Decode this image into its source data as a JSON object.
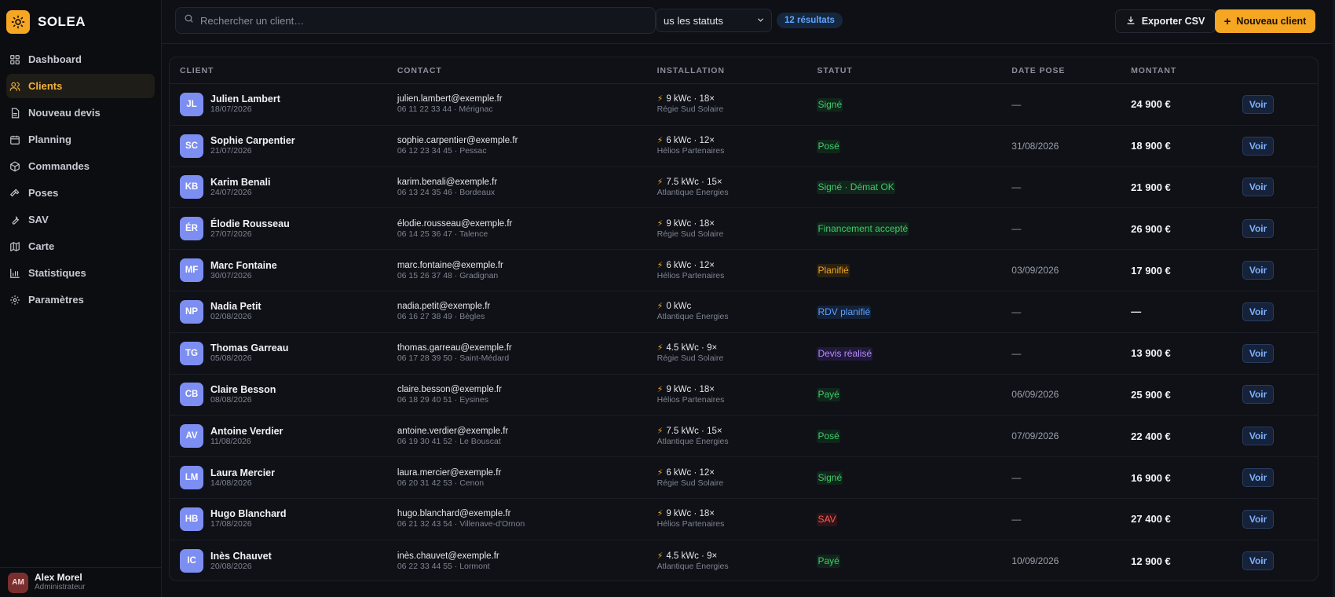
{
  "brand": {
    "name": "SOLEA"
  },
  "nav": [
    {
      "key": "dashboard",
      "label": "Dashboard",
      "icon": "grid-icon"
    },
    {
      "key": "clients",
      "label": "Clients",
      "icon": "users-icon",
      "active": true
    },
    {
      "key": "nouveau-devis",
      "label": "Nouveau devis",
      "icon": "file-icon"
    },
    {
      "key": "planning",
      "label": "Planning",
      "icon": "calendar-icon"
    },
    {
      "key": "commandes",
      "label": "Commandes",
      "icon": "box-icon"
    },
    {
      "key": "poses",
      "label": "Poses",
      "icon": "hammer-icon"
    },
    {
      "key": "sav",
      "label": "SAV",
      "icon": "wrench-icon"
    },
    {
      "key": "carte",
      "label": "Carte",
      "icon": "map-icon"
    },
    {
      "key": "statistiques",
      "label": "Statistiques",
      "icon": "chart-icon"
    },
    {
      "key": "parametres",
      "label": "Paramètres",
      "icon": "gear-icon"
    }
  ],
  "user": {
    "initials": "AM",
    "name": "Alex Morel",
    "role": "Administrateur"
  },
  "toolbar": {
    "search_placeholder": "Rechercher un client…",
    "status_filter": "us les statuts",
    "results": "12 résultats",
    "export_label": "Exporter CSV",
    "new_label": "Nouveau client"
  },
  "columns": {
    "client": "CLIENT",
    "contact": "CONTACT",
    "installation": "INSTALLATION",
    "statut": "STATUT",
    "date_pose": "DATE POSE",
    "montant": "MONTANT"
  },
  "action_label": "Voir",
  "colors": {
    "accent": "#f5a623",
    "avatar": "#7d8ef2"
  },
  "rows": [
    {
      "initials": "JL",
      "name": "Julien Lambert",
      "date": "18/07/2026",
      "email": "julien.lambert@exemple.fr",
      "phone": "06 11 22 33 44 · Mérignac",
      "install": "9 kWc · 18×",
      "installer": "Régie Sud Solaire",
      "status": "Signé",
      "status_color": "green",
      "pose": "—",
      "amount": "24 900 €"
    },
    {
      "initials": "SC",
      "name": "Sophie Carpentier",
      "date": "21/07/2026",
      "email": "sophie.carpentier@exemple.fr",
      "phone": "06 12 23 34 45 · Pessac",
      "install": "6 kWc · 12×",
      "installer": "Hélios Partenaires",
      "status": "Posé",
      "status_color": "green",
      "pose": "31/08/2026",
      "amount": "18 900 €"
    },
    {
      "initials": "KB",
      "name": "Karim Benali",
      "date": "24/07/2026",
      "email": "karim.benali@exemple.fr",
      "phone": "06 13 24 35 46 · Bordeaux",
      "install": "7.5 kWc · 15×",
      "installer": "Atlantique Énergies",
      "status": "Signé · Démat OK",
      "status_color": "green",
      "pose": "—",
      "amount": "21 900 €"
    },
    {
      "initials": "ÉR",
      "name": "Élodie Rousseau",
      "date": "27/07/2026",
      "email": "élodie.rousseau@exemple.fr",
      "phone": "06 14 25 36 47 · Talence",
      "install": "9 kWc · 18×",
      "installer": "Régie Sud Solaire",
      "status": "Financement accepté",
      "status_color": "green",
      "pose": "—",
      "amount": "26 900 €"
    },
    {
      "initials": "MF",
      "name": "Marc Fontaine",
      "date": "30/07/2026",
      "email": "marc.fontaine@exemple.fr",
      "phone": "06 15 26 37 48 · Gradignan",
      "install": "6 kWc · 12×",
      "installer": "Hélios Partenaires",
      "status": "Planifié",
      "status_color": "orange",
      "pose": "03/09/2026",
      "amount": "17 900 €"
    },
    {
      "initials": "NP",
      "name": "Nadia Petit",
      "date": "02/08/2026",
      "email": "nadia.petit@exemple.fr",
      "phone": "06 16 27 38 49 · Bègles",
      "install": "0 kWc",
      "installer": "Atlantique Énergies",
      "status": "RDV planifié",
      "status_color": "blue",
      "pose": "—",
      "amount": "—"
    },
    {
      "initials": "TG",
      "name": "Thomas Garreau",
      "date": "05/08/2026",
      "email": "thomas.garreau@exemple.fr",
      "phone": "06 17 28 39 50 · Saint-Médard",
      "install": "4.5 kWc · 9×",
      "installer": "Régie Sud Solaire",
      "status": "Devis réalisé",
      "status_color": "purple",
      "pose": "—",
      "amount": "13 900 €"
    },
    {
      "initials": "CB",
      "name": "Claire Besson",
      "date": "08/08/2026",
      "email": "claire.besson@exemple.fr",
      "phone": "06 18 29 40 51 · Eysines",
      "install": "9 kWc · 18×",
      "installer": "Hélios Partenaires",
      "status": "Payé",
      "status_color": "green",
      "pose": "06/09/2026",
      "amount": "25 900 €"
    },
    {
      "initials": "AV",
      "name": "Antoine Verdier",
      "date": "11/08/2026",
      "email": "antoine.verdier@exemple.fr",
      "phone": "06 19 30 41 52 · Le Bouscat",
      "install": "7.5 kWc · 15×",
      "installer": "Atlantique Énergies",
      "status": "Posé",
      "status_color": "green",
      "pose": "07/09/2026",
      "amount": "22 400 €"
    },
    {
      "initials": "LM",
      "name": "Laura Mercier",
      "date": "14/08/2026",
      "email": "laura.mercier@exemple.fr",
      "phone": "06 20 31 42 53 · Cenon",
      "install": "6 kWc · 12×",
      "installer": "Régie Sud Solaire",
      "status": "Signé",
      "status_color": "green",
      "pose": "—",
      "amount": "16 900 €"
    },
    {
      "initials": "HB",
      "name": "Hugo Blanchard",
      "date": "17/08/2026",
      "email": "hugo.blanchard@exemple.fr",
      "phone": "06 21 32 43 54 · Villenave-d'Ornon",
      "install": "9 kWc · 18×",
      "installer": "Hélios Partenaires",
      "status": "SAV",
      "status_color": "red",
      "pose": "—",
      "amount": "27 400 €"
    },
    {
      "initials": "IC",
      "name": "Inès Chauvet",
      "date": "20/08/2026",
      "email": "inès.chauvet@exemple.fr",
      "phone": "06 22 33 44 55 · Lormont",
      "install": "4.5 kWc · 9×",
      "installer": "Atlantique Énergies",
      "status": "Payé",
      "status_color": "green",
      "pose": "10/09/2026",
      "amount": "12 900 €"
    }
  ]
}
